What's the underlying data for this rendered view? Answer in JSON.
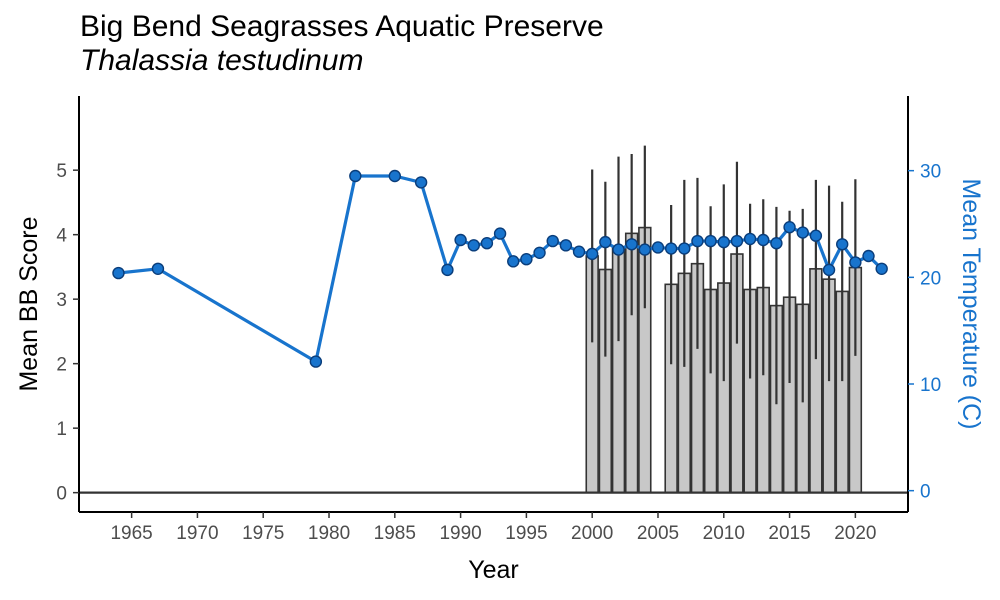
{
  "chart_data": {
    "type": "bar",
    "title": "Big Bend Seagrasses Aquatic Preserve",
    "subtitle": "Thalassia testudinum",
    "xlabel": "Year",
    "ylabel": "Mean BB Score",
    "y2label": "Mean Temperature (C)",
    "xlim": [
      1961,
      2024
    ],
    "ylim": [
      -0.3,
      6.15
    ],
    "y2lim": [
      -2,
      37
    ],
    "x_ticks": [
      1965,
      1970,
      1975,
      1980,
      1985,
      1990,
      1995,
      2000,
      2005,
      2010,
      2015,
      2020
    ],
    "y_ticks": [
      0,
      1,
      2,
      3,
      4,
      5
    ],
    "y2_ticks": [
      0,
      10,
      20,
      30
    ],
    "colors": {
      "bar_fill": "#C8C8C8",
      "bar_stroke": "#333333",
      "line": "#1874CD",
      "point_fill": "#1874CD",
      "point_stroke": "#0A3D7A",
      "error_bar": "#333333"
    },
    "bars": {
      "name": "Mean BB Score",
      "x": [
        2000,
        2001,
        2002,
        2003,
        2004,
        2006,
        2007,
        2008,
        2009,
        2010,
        2011,
        2012,
        2013,
        2014,
        2015,
        2016,
        2017,
        2018,
        2019,
        2020
      ],
      "values": [
        3.67,
        3.46,
        3.79,
        4.02,
        4.11,
        3.23,
        3.4,
        3.55,
        3.15,
        3.25,
        3.7,
        3.15,
        3.18,
        2.9,
        3.03,
        2.92,
        3.47,
        3.31,
        3.12,
        3.49
      ],
      "err_low": [
        2.33,
        2.11,
        2.35,
        2.75,
        2.86,
        1.99,
        1.95,
        2.23,
        1.85,
        1.73,
        2.31,
        1.77,
        1.82,
        1.37,
        1.7,
        1.4,
        2.07,
        1.73,
        1.73,
        2.12
      ],
      "err_high": [
        5.01,
        4.82,
        5.21,
        5.25,
        5.38,
        4.46,
        4.85,
        4.88,
        4.44,
        4.78,
        5.13,
        4.48,
        4.55,
        4.43,
        4.37,
        4.4,
        4.85,
        4.76,
        4.51,
        4.86
      ]
    },
    "series": [
      {
        "name": "Mean Temperature",
        "axis": "right",
        "x": [
          1964,
          1967,
          1979,
          1982,
          1985,
          1987,
          1989,
          1990,
          1991,
          1992,
          1993,
          1994,
          1995,
          1996,
          1997,
          1998,
          1999,
          2000,
          2001,
          2002,
          2003,
          2004,
          2005,
          2006,
          2007,
          2008,
          2009,
          2010,
          2011,
          2012,
          2013,
          2014,
          2015,
          2016,
          2017,
          2018,
          2019,
          2020,
          2021,
          2022
        ],
        "values": [
          20.4,
          20.8,
          12.1,
          29.5,
          29.5,
          28.9,
          20.7,
          23.5,
          23.0,
          23.2,
          24.1,
          21.5,
          21.7,
          22.3,
          23.4,
          23.0,
          22.4,
          22.2,
          23.3,
          22.6,
          23.1,
          22.6,
          22.8,
          22.7,
          22.7,
          23.4,
          23.4,
          23.3,
          23.4,
          23.6,
          23.5,
          23.2,
          24.7,
          24.2,
          23.9,
          20.7,
          23.1,
          21.4,
          22.0,
          20.8
        ]
      }
    ],
    "legend": "none",
    "grid": false
  }
}
